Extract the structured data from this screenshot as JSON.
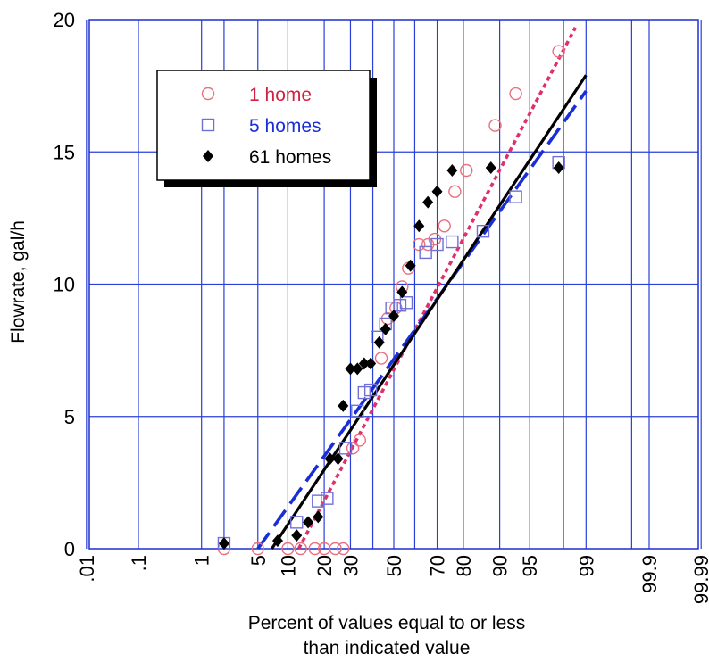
{
  "chart_data": {
    "type": "scatter",
    "xlabel_lines": [
      "Percent of values equal to or less",
      "than indicated value"
    ],
    "ylabel": "Flowrate, gal/h",
    "x_scale": "normal-probability",
    "ylim": [
      0,
      20
    ],
    "y_ticks": [
      "0",
      "5",
      "10",
      "15",
      "20"
    ],
    "x_ticks": [
      ".01",
      ".1",
      "1",
      "5",
      "10",
      "20",
      "30",
      "50",
      "70",
      "80",
      "90",
      "95",
      "99",
      "99.9",
      "99.99"
    ],
    "x_grid": [
      0.01,
      0.1,
      1,
      2,
      5,
      10,
      20,
      30,
      40,
      50,
      60,
      70,
      80,
      90,
      95,
      98,
      99,
      99.8,
      99.9,
      99.99
    ],
    "grid": true,
    "legend_position": "top-left",
    "series": [
      {
        "name": "1 home",
        "marker": "circle",
        "color": "#e8707f",
        "text_color": "#d42040",
        "fit_style": "dotted",
        "fit_color": "#e0306a",
        "fit": [
          [
            12.5,
            0
          ],
          [
            98.6,
            19.7
          ]
        ],
        "points": [
          [
            2,
            0
          ],
          [
            5,
            0
          ],
          [
            10,
            0
          ],
          [
            13,
            0
          ],
          [
            17,
            0
          ],
          [
            20,
            0
          ],
          [
            24,
            0
          ],
          [
            27,
            0
          ],
          [
            31,
            3.8
          ],
          [
            34,
            4.1
          ],
          [
            44,
            7.2
          ],
          [
            47,
            8.7
          ],
          [
            51,
            9.1
          ],
          [
            54,
            9.9
          ],
          [
            57,
            10.6
          ],
          [
            62,
            11.5
          ],
          [
            66,
            11.5
          ],
          [
            69,
            11.7
          ],
          [
            73,
            12.2
          ],
          [
            77,
            13.5
          ],
          [
            81,
            14.3
          ],
          [
            89,
            16.0
          ],
          [
            93,
            17.2
          ],
          [
            97.7,
            18.8
          ]
        ]
      },
      {
        "name": "5 homes",
        "marker": "square",
        "color": "#7070d8",
        "text_color": "#1a2ed8",
        "fit_style": "dashed",
        "fit_color": "#1a2ed8",
        "fit": [
          [
            5,
            0
          ],
          [
            99,
            17.3
          ]
        ],
        "points": [
          [
            2,
            0.2
          ],
          [
            12,
            1.0
          ],
          [
            18,
            1.8
          ],
          [
            21,
            1.9
          ],
          [
            28,
            3.8
          ],
          [
            33,
            5.2
          ],
          [
            36,
            5.9
          ],
          [
            39,
            6.0
          ],
          [
            42,
            8.0
          ],
          [
            46,
            8.5
          ],
          [
            49,
            9.1
          ],
          [
            53,
            9.2
          ],
          [
            56,
            9.3
          ],
          [
            65,
            11.2
          ],
          [
            70,
            11.5
          ],
          [
            76,
            11.6
          ],
          [
            86,
            12.0
          ],
          [
            93,
            13.3
          ],
          [
            97.7,
            14.6
          ]
        ]
      },
      {
        "name": "61 homes",
        "marker": "diamond",
        "color": "#000000",
        "text_color": "#000000",
        "fit_style": "solid",
        "fit_color": "#000000",
        "fit": [
          [
            7,
            0
          ],
          [
            99,
            17.9
          ]
        ],
        "points": [
          [
            2,
            0.2
          ],
          [
            8,
            0.3
          ],
          [
            12,
            0.5
          ],
          [
            15,
            1.0
          ],
          [
            18,
            1.2
          ],
          [
            22,
            3.4
          ],
          [
            25,
            3.4
          ],
          [
            27,
            5.4
          ],
          [
            30,
            6.8
          ],
          [
            33,
            6.8
          ],
          [
            36,
            7.0
          ],
          [
            39,
            7.0
          ],
          [
            43,
            7.8
          ],
          [
            46,
            8.3
          ],
          [
            50,
            8.8
          ],
          [
            54,
            9.7
          ],
          [
            58,
            10.7
          ],
          [
            62,
            12.2
          ],
          [
            66,
            13.1
          ],
          [
            70,
            13.5
          ],
          [
            76,
            14.3
          ],
          [
            88,
            14.4
          ],
          [
            97.7,
            14.4
          ]
        ]
      }
    ]
  }
}
